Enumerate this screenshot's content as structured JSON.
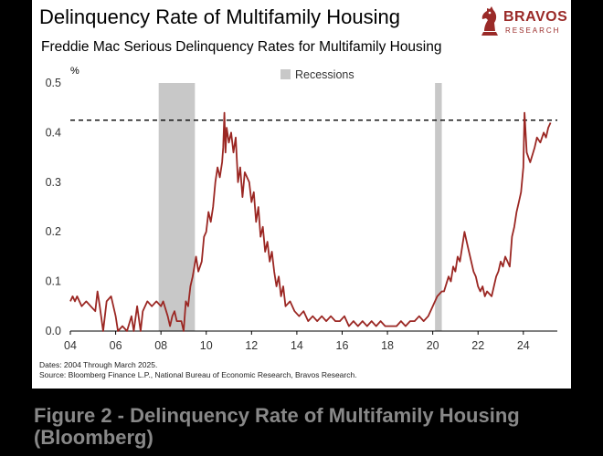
{
  "card": {
    "title": "Delinquency Rate of Multifamily Housing",
    "subtitle": "Freddie Mac Serious Delinquency Rates for Multifamily Housing",
    "notes": [
      "Dates: 2004 Through March 2025.",
      "Source: Bloomberg Finance L.P., National Bureau of Economic Research, Bravos Research."
    ]
  },
  "logo": {
    "name": "BRAVOS",
    "sub": "RESEARCH"
  },
  "caption": "Figure 2 - Delinquency Rate of Multifamily Housing (Bloomberg)",
  "colors": {
    "line": "#9b2723",
    "recession": "#c8c8c8",
    "brand": "#9a2a28"
  },
  "chart_data": {
    "type": "line",
    "title": "Delinquency Rate of Multifamily Housing",
    "subtitle": "Freddie Mac Serious Delinquency Rates for Multifamily Housing",
    "ylabel": "%",
    "xlim": [
      2004,
      2025.5
    ],
    "ylim": [
      0,
      0.5
    ],
    "yticks": [
      0,
      0.1,
      0.2,
      0.3,
      0.4,
      0.5
    ],
    "ytick_labels": [
      "0.0",
      "0.1",
      "0.2",
      "0.3",
      "0.4",
      "0.5"
    ],
    "xticks": [
      2004,
      2006,
      2008,
      2010,
      2012,
      2014,
      2016,
      2018,
      2020,
      2022,
      2024
    ],
    "xtick_labels": [
      "04",
      "06",
      "08",
      "10",
      "12",
      "14",
      "16",
      "18",
      "20",
      "22",
      "24"
    ],
    "legend": {
      "label": "Recessions",
      "position": "top-center"
    },
    "recessions": [
      [
        2007.9,
        2009.5
      ],
      [
        2020.1,
        2020.4
      ]
    ],
    "reference_line": {
      "y": 0.425,
      "style": "dashed"
    },
    "series": [
      {
        "name": "Serious Delinquency Rate",
        "points": [
          [
            2004.0,
            0.06
          ],
          [
            2004.1,
            0.07
          ],
          [
            2004.2,
            0.06
          ],
          [
            2004.3,
            0.07
          ],
          [
            2004.5,
            0.05
          ],
          [
            2004.7,
            0.06
          ],
          [
            2004.9,
            0.05
          ],
          [
            2005.1,
            0.04
          ],
          [
            2005.2,
            0.08
          ],
          [
            2005.3,
            0.05
          ],
          [
            2005.45,
            0.0
          ],
          [
            2005.6,
            0.06
          ],
          [
            2005.8,
            0.07
          ],
          [
            2006.0,
            0.03
          ],
          [
            2006.1,
            0.0
          ],
          [
            2006.3,
            0.01
          ],
          [
            2006.5,
            0.0
          ],
          [
            2006.7,
            0.03
          ],
          [
            2006.8,
            0.0
          ],
          [
            2006.95,
            0.05
          ],
          [
            2007.1,
            0.0
          ],
          [
            2007.2,
            0.04
          ],
          [
            2007.4,
            0.06
          ],
          [
            2007.6,
            0.05
          ],
          [
            2007.8,
            0.06
          ],
          [
            2008.0,
            0.05
          ],
          [
            2008.1,
            0.06
          ],
          [
            2008.3,
            0.03
          ],
          [
            2008.4,
            0.01
          ],
          [
            2008.5,
            0.03
          ],
          [
            2008.6,
            0.04
          ],
          [
            2008.7,
            0.02
          ],
          [
            2008.9,
            0.02
          ],
          [
            2009.0,
            0.0
          ],
          [
            2009.1,
            0.06
          ],
          [
            2009.2,
            0.05
          ],
          [
            2009.3,
            0.09
          ],
          [
            2009.4,
            0.11
          ],
          [
            2009.55,
            0.15
          ],
          [
            2009.65,
            0.12
          ],
          [
            2009.8,
            0.14
          ],
          [
            2009.9,
            0.19
          ],
          [
            2010.0,
            0.2
          ],
          [
            2010.1,
            0.24
          ],
          [
            2010.2,
            0.22
          ],
          [
            2010.3,
            0.25
          ],
          [
            2010.4,
            0.3
          ],
          [
            2010.5,
            0.33
          ],
          [
            2010.6,
            0.31
          ],
          [
            2010.7,
            0.34
          ],
          [
            2010.75,
            0.37
          ],
          [
            2010.8,
            0.44
          ],
          [
            2010.85,
            0.36
          ],
          [
            2010.9,
            0.41
          ],
          [
            2011.0,
            0.38
          ],
          [
            2011.1,
            0.4
          ],
          [
            2011.2,
            0.36
          ],
          [
            2011.3,
            0.39
          ],
          [
            2011.4,
            0.3
          ],
          [
            2011.5,
            0.33
          ],
          [
            2011.6,
            0.27
          ],
          [
            2011.7,
            0.32
          ],
          [
            2011.9,
            0.3
          ],
          [
            2012.0,
            0.26
          ],
          [
            2012.1,
            0.28
          ],
          [
            2012.2,
            0.22
          ],
          [
            2012.3,
            0.25
          ],
          [
            2012.4,
            0.19
          ],
          [
            2012.5,
            0.21
          ],
          [
            2012.6,
            0.16
          ],
          [
            2012.7,
            0.18
          ],
          [
            2012.8,
            0.14
          ],
          [
            2012.9,
            0.16
          ],
          [
            2013.0,
            0.12
          ],
          [
            2013.1,
            0.09
          ],
          [
            2013.2,
            0.11
          ],
          [
            2013.3,
            0.07
          ],
          [
            2013.4,
            0.09
          ],
          [
            2013.5,
            0.05
          ],
          [
            2013.7,
            0.06
          ],
          [
            2013.9,
            0.04
          ],
          [
            2014.1,
            0.03
          ],
          [
            2014.3,
            0.04
          ],
          [
            2014.5,
            0.02
          ],
          [
            2014.7,
            0.03
          ],
          [
            2014.9,
            0.02
          ],
          [
            2015.1,
            0.03
          ],
          [
            2015.3,
            0.02
          ],
          [
            2015.5,
            0.03
          ],
          [
            2015.7,
            0.02
          ],
          [
            2015.9,
            0.02
          ],
          [
            2016.1,
            0.03
          ],
          [
            2016.3,
            0.01
          ],
          [
            2016.5,
            0.02
          ],
          [
            2016.7,
            0.01
          ],
          [
            2016.9,
            0.02
          ],
          [
            2017.1,
            0.01
          ],
          [
            2017.3,
            0.02
          ],
          [
            2017.5,
            0.01
          ],
          [
            2017.7,
            0.02
          ],
          [
            2017.9,
            0.01
          ],
          [
            2018.1,
            0.01
          ],
          [
            2018.4,
            0.01
          ],
          [
            2018.6,
            0.02
          ],
          [
            2018.8,
            0.01
          ],
          [
            2019.0,
            0.02
          ],
          [
            2019.2,
            0.02
          ],
          [
            2019.4,
            0.03
          ],
          [
            2019.6,
            0.02
          ],
          [
            2019.8,
            0.03
          ],
          [
            2020.0,
            0.05
          ],
          [
            2020.2,
            0.07
          ],
          [
            2020.4,
            0.08
          ],
          [
            2020.5,
            0.08
          ],
          [
            2020.7,
            0.11
          ],
          [
            2020.8,
            0.1
          ],
          [
            2020.9,
            0.13
          ],
          [
            2021.0,
            0.12
          ],
          [
            2021.1,
            0.15
          ],
          [
            2021.2,
            0.14
          ],
          [
            2021.3,
            0.17
          ],
          [
            2021.4,
            0.2
          ],
          [
            2021.5,
            0.18
          ],
          [
            2021.6,
            0.16
          ],
          [
            2021.7,
            0.14
          ],
          [
            2021.8,
            0.12
          ],
          [
            2021.9,
            0.11
          ],
          [
            2022.0,
            0.09
          ],
          [
            2022.1,
            0.08
          ],
          [
            2022.2,
            0.09
          ],
          [
            2022.3,
            0.07
          ],
          [
            2022.4,
            0.08
          ],
          [
            2022.6,
            0.07
          ],
          [
            2022.7,
            0.09
          ],
          [
            2022.8,
            0.11
          ],
          [
            2022.9,
            0.12
          ],
          [
            2023.0,
            0.14
          ],
          [
            2023.1,
            0.13
          ],
          [
            2023.2,
            0.15
          ],
          [
            2023.3,
            0.14
          ],
          [
            2023.4,
            0.13
          ],
          [
            2023.5,
            0.19
          ],
          [
            2023.6,
            0.21
          ],
          [
            2023.7,
            0.24
          ],
          [
            2023.8,
            0.26
          ],
          [
            2023.9,
            0.28
          ],
          [
            2024.0,
            0.33
          ],
          [
            2024.05,
            0.44
          ],
          [
            2024.15,
            0.36
          ],
          [
            2024.3,
            0.34
          ],
          [
            2024.5,
            0.37
          ],
          [
            2024.6,
            0.39
          ],
          [
            2024.75,
            0.38
          ],
          [
            2024.9,
            0.4
          ],
          [
            2025.0,
            0.39
          ],
          [
            2025.1,
            0.41
          ],
          [
            2025.2,
            0.42
          ]
        ]
      }
    ]
  }
}
